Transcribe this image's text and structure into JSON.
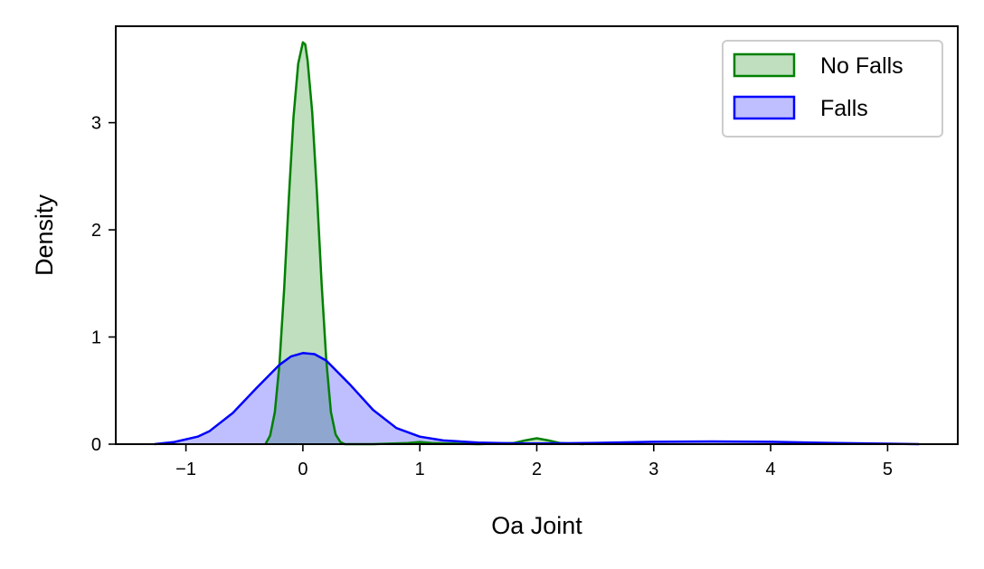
{
  "chart_data": {
    "type": "area",
    "xlabel": "Oa Joint",
    "ylabel": "Density",
    "xlim": [
      -1.6,
      5.6
    ],
    "ylim": [
      0,
      3.9
    ],
    "x_ticks": [
      -1,
      0,
      1,
      2,
      3,
      4,
      5
    ],
    "x_tick_labels": [
      "−1",
      "0",
      "1",
      "2",
      "3",
      "4",
      "5"
    ],
    "y_ticks": [
      0,
      1,
      2,
      3
    ],
    "y_tick_labels": [
      "0",
      "1",
      "2",
      "3"
    ],
    "grid": false,
    "legend_position": "top-right",
    "series": [
      {
        "name": "No Falls",
        "line_color": "#008000",
        "fill_color": "#008000",
        "fill_opacity": 0.25,
        "x": [
          -0.32,
          -0.28,
          -0.24,
          -0.2,
          -0.16,
          -0.12,
          -0.08,
          -0.04,
          0.0,
          0.02,
          0.04,
          0.08,
          0.12,
          0.16,
          0.2,
          0.24,
          0.28,
          0.32,
          0.36,
          0.4,
          0.6,
          0.9,
          1.0,
          1.1,
          1.5,
          1.8,
          1.9,
          2.0,
          2.1,
          2.2,
          2.4
        ],
        "y": [
          0.0,
          0.08,
          0.3,
          0.75,
          1.45,
          2.3,
          3.05,
          3.55,
          3.75,
          3.73,
          3.58,
          3.1,
          2.35,
          1.5,
          0.78,
          0.3,
          0.09,
          0.02,
          0.0,
          0.0,
          0.0,
          0.01,
          0.02,
          0.01,
          0.0,
          0.01,
          0.035,
          0.055,
          0.035,
          0.01,
          0.0
        ]
      },
      {
        "name": "Falls",
        "line_color": "#0000ff",
        "fill_color": "#0000ff",
        "fill_opacity": 0.25,
        "x": [
          -1.27,
          -1.1,
          -0.9,
          -0.8,
          -0.6,
          -0.4,
          -0.2,
          -0.1,
          0.0,
          0.1,
          0.2,
          0.4,
          0.6,
          0.8,
          1.0,
          1.2,
          1.5,
          1.8,
          2.0,
          2.5,
          3.0,
          3.5,
          4.0,
          4.5,
          5.0,
          5.27
        ],
        "y": [
          0.0,
          0.02,
          0.07,
          0.12,
          0.29,
          0.52,
          0.74,
          0.82,
          0.85,
          0.84,
          0.78,
          0.56,
          0.32,
          0.15,
          0.07,
          0.035,
          0.015,
          0.008,
          0.006,
          0.012,
          0.022,
          0.025,
          0.022,
          0.012,
          0.004,
          0.0
        ]
      }
    ]
  }
}
